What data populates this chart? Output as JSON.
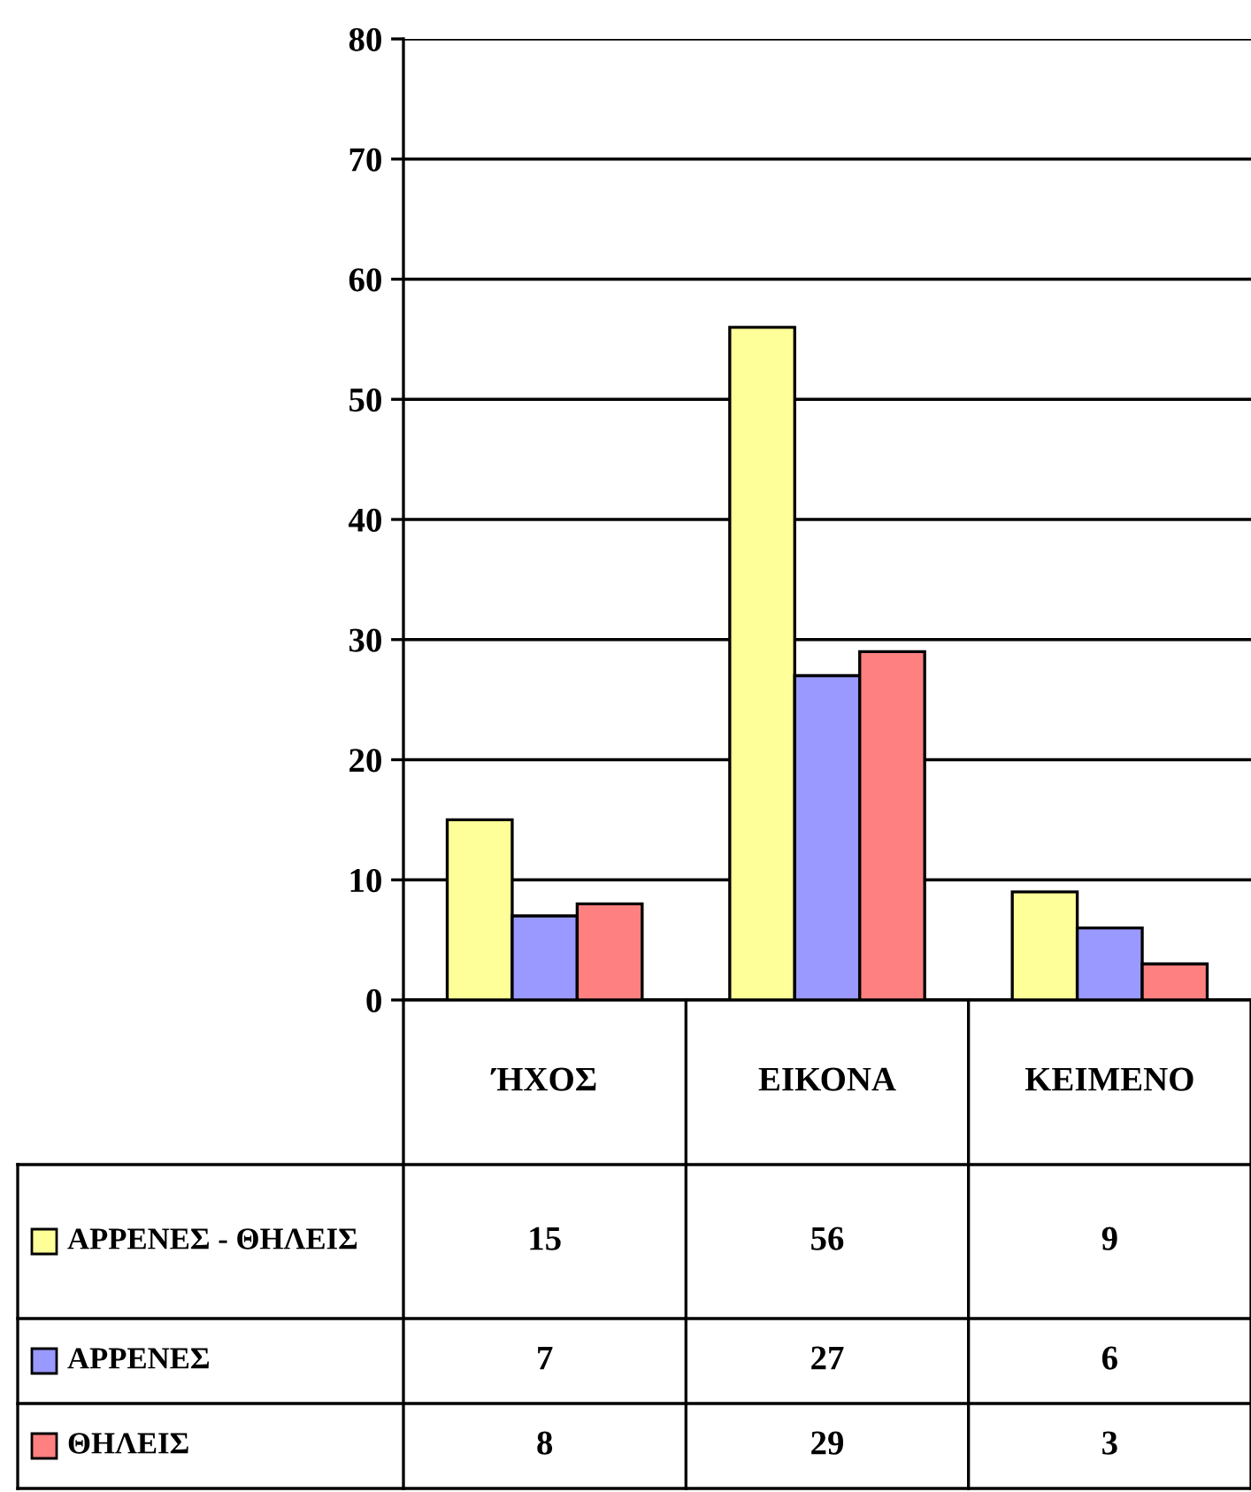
{
  "chart_data": {
    "type": "bar",
    "categories": [
      "ΉΧΟΣ",
      "ΕΙΚΟΝΑ",
      "ΚΕΙΜΕΝΟ"
    ],
    "series": [
      {
        "name": "ΑΡΡΕΝΕΣ - ΘΗΛΕΙΣ",
        "color": "#ffff99",
        "values": [
          15,
          56,
          9
        ]
      },
      {
        "name": "ΑΡΡΕΝΕΣ",
        "color": "#9999ff",
        "values": [
          7,
          27,
          6
        ]
      },
      {
        "name": "ΘΗΛΕΙΣ",
        "color": "#ff8080",
        "values": [
          8,
          29,
          3
        ]
      }
    ],
    "ylim": [
      0,
      80
    ],
    "yticks": [
      0,
      10,
      20,
      30,
      40,
      50,
      60,
      70,
      80
    ],
    "grid": "y",
    "legend": "bottom left",
    "data_labels": true
  }
}
